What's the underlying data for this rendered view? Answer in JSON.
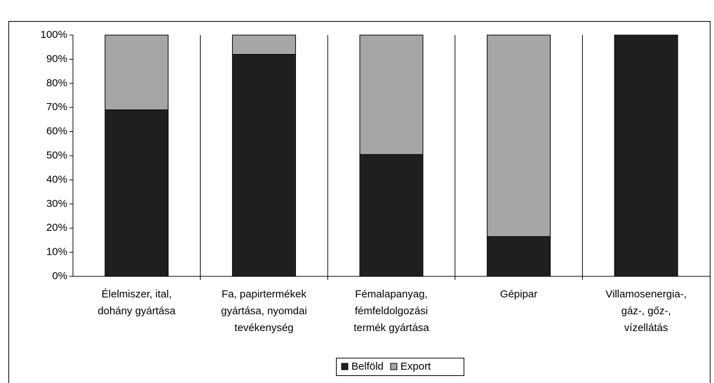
{
  "chart_data": {
    "type": "stacked_bar_100",
    "categories": [
      [
        "Élelmiszer, ital,",
        "dohány gyártása"
      ],
      [
        "Fa, papirtermékek",
        "gyártása, nyomdai",
        "tevékenység"
      ],
      [
        "Fémalapanyag,",
        "fémfeldolgozási",
        "termék gyártása"
      ],
      [
        "Gépipar"
      ],
      [
        "Villamosenergia-,",
        "gáz-, gőz-,",
        "vízellátás"
      ]
    ],
    "series": [
      {
        "name": "Belföld",
        "color": "#1f1f1f",
        "values": [
          69,
          92,
          50.5,
          16.5,
          100
        ]
      },
      {
        "name": "Export",
        "color": "#a6a6a6",
        "values": [
          31,
          8,
          49.5,
          83.5,
          0
        ]
      }
    ],
    "ylim": [
      0,
      100
    ],
    "yticks": [
      {
        "value": 0,
        "label": "0%"
      },
      {
        "value": 10,
        "label": "10%"
      },
      {
        "value": 20,
        "label": "20%"
      },
      {
        "value": 30,
        "label": "30%"
      },
      {
        "value": 40,
        "label": "40%"
      },
      {
        "value": 50,
        "label": "50%"
      },
      {
        "value": 60,
        "label": "60%"
      },
      {
        "value": 70,
        "label": "70%"
      },
      {
        "value": 80,
        "label": "80%"
      },
      {
        "value": 90,
        "label": "90%"
      },
      {
        "value": 100,
        "label": "100%"
      }
    ],
    "legend": "bottom"
  }
}
